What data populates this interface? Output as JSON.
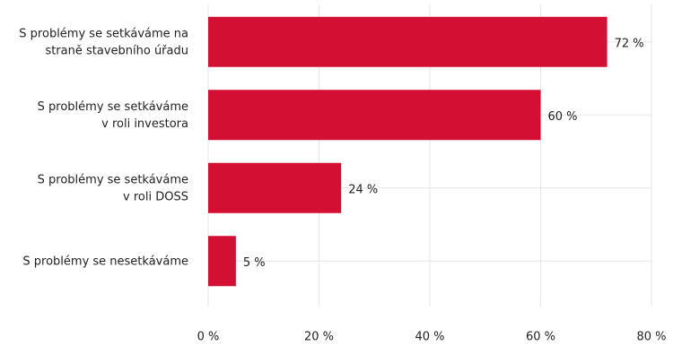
{
  "chart_data": {
    "type": "bar",
    "orientation": "horizontal",
    "categories": [
      [
        "S problémy se setkáváme na",
        "straně stavebního úřadu"
      ],
      [
        "S problémy se setkáváme",
        "v roli investora"
      ],
      [
        "S problémy se setkáváme",
        "v roli DOSS"
      ],
      [
        "S problémy se nesetkáváme"
      ]
    ],
    "values": [
      72,
      60,
      24,
      5
    ],
    "value_labels": [
      "72 %",
      "60 %",
      "24 %",
      "5 %"
    ],
    "color": "#d31034",
    "xlim": [
      0,
      80
    ],
    "xticks": [
      {
        "value": 0,
        "label": "0 %"
      },
      {
        "value": 20,
        "label": "20 %"
      },
      {
        "value": 40,
        "label": "40 %"
      },
      {
        "value": 60,
        "label": "60 %"
      },
      {
        "value": 80,
        "label": "80 %"
      }
    ],
    "grid": true
  }
}
